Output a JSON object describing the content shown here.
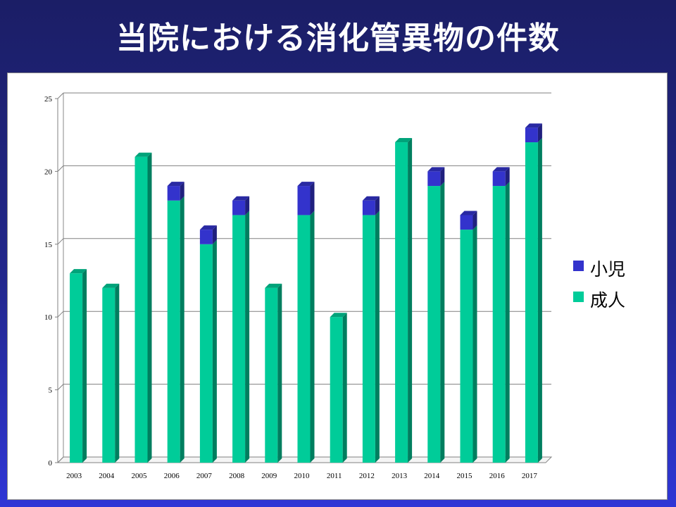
{
  "slide": {
    "title": "当院における消化管異物の件数"
  },
  "colors": {
    "adult": "#00cc99",
    "child": "#3333cc"
  },
  "chart_data": {
    "type": "bar",
    "stacked": true,
    "three_d": true,
    "categories": [
      "2003",
      "2004",
      "2005",
      "2006",
      "2007",
      "2008",
      "2009",
      "2010",
      "2011",
      "2012",
      "2013",
      "2014",
      "2015",
      "2016",
      "2017"
    ],
    "series": [
      {
        "name": "成人",
        "values": [
          13,
          12,
          21,
          18,
          15,
          17,
          12,
          17,
          10,
          17,
          22,
          19,
          16,
          19,
          22
        ]
      },
      {
        "name": "小児",
        "values": [
          0,
          0,
          0,
          1,
          1,
          1,
          0,
          2,
          0,
          1,
          0,
          1,
          1,
          1,
          1
        ]
      }
    ],
    "ylim": [
      0,
      25
    ],
    "yticks": [
      "0",
      "5",
      "10",
      "15",
      "20",
      "25"
    ],
    "grid": true,
    "legend": "right",
    "legend_order": [
      "小児",
      "成人"
    ]
  }
}
